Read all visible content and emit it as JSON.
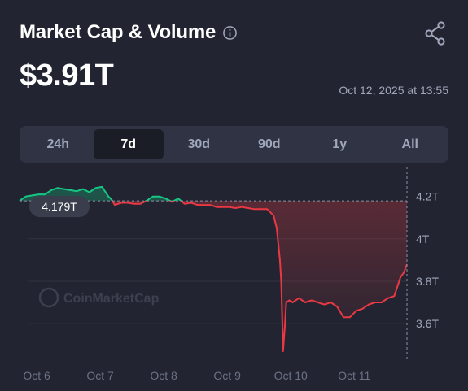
{
  "header": {
    "title": "Market Cap & Volume",
    "value": "$3.91T",
    "timestamp": "Oct 12, 2025 at 13:55"
  },
  "ranges": [
    {
      "label": "24h",
      "active": false
    },
    {
      "label": "7d",
      "active": true
    },
    {
      "label": "30d",
      "active": false
    },
    {
      "label": "90d",
      "active": false
    },
    {
      "label": "1y",
      "active": false
    },
    {
      "label": "All",
      "active": false
    }
  ],
  "watermark": "CoinMarketCap",
  "colors": {
    "up": "#16c784",
    "down": "#ea3943",
    "accent": "#a1a7bb"
  },
  "chart_data": {
    "type": "line",
    "baseline_value": 4.179,
    "baseline_label": "4.179T",
    "y_ticks": [
      "4.2T",
      "4T",
      "3.8T",
      "3.6T"
    ],
    "y_tick_values": [
      4.2,
      4.0,
      3.8,
      3.6
    ],
    "ylim": [
      3.42,
      4.31
    ],
    "x_ticks": [
      "Oct 6",
      "Oct 7",
      "Oct 8",
      "Oct 9",
      "Oct 10",
      "Oct 11"
    ],
    "x_tick_values": [
      0.27,
      1.27,
      2.27,
      3.27,
      4.27,
      5.27
    ],
    "xlim": [
      0,
      6.1
    ],
    "x": [
      0,
      0.1,
      0.2,
      0.3,
      0.4,
      0.5,
      0.6,
      0.7,
      0.8,
      0.9,
      1.0,
      1.1,
      1.2,
      1.3,
      1.4,
      1.45,
      1.5,
      1.6,
      1.7,
      1.8,
      1.9,
      2.0,
      2.1,
      2.2,
      2.3,
      2.4,
      2.5,
      2.6,
      2.7,
      2.8,
      2.9,
      3.0,
      3.1,
      3.2,
      3.3,
      3.4,
      3.5,
      3.6,
      3.7,
      3.8,
      3.9,
      4.0,
      4.05,
      4.1,
      4.12,
      4.15,
      4.18,
      4.2,
      4.25,
      4.3,
      4.4,
      4.5,
      4.6,
      4.7,
      4.8,
      4.9,
      5.0,
      5.1,
      5.2,
      5.3,
      5.4,
      5.5,
      5.6,
      5.7,
      5.8,
      5.9,
      6.0,
      6.05,
      6.1
    ],
    "values": [
      4.18,
      4.2,
      4.205,
      4.21,
      4.21,
      4.23,
      4.24,
      4.235,
      4.23,
      4.225,
      4.235,
      4.22,
      4.24,
      4.245,
      4.2,
      4.185,
      4.16,
      4.17,
      4.17,
      4.165,
      4.165,
      4.18,
      4.2,
      4.2,
      4.19,
      4.175,
      4.19,
      4.165,
      4.17,
      4.16,
      4.16,
      4.16,
      4.15,
      4.15,
      4.15,
      4.145,
      4.15,
      4.145,
      4.14,
      4.14,
      4.14,
      4.11,
      4.05,
      3.9,
      3.8,
      3.47,
      3.6,
      3.7,
      3.71,
      3.7,
      3.72,
      3.7,
      3.71,
      3.7,
      3.69,
      3.7,
      3.68,
      3.63,
      3.63,
      3.66,
      3.67,
      3.69,
      3.7,
      3.7,
      3.72,
      3.73,
      3.82,
      3.84,
      3.88
    ]
  }
}
